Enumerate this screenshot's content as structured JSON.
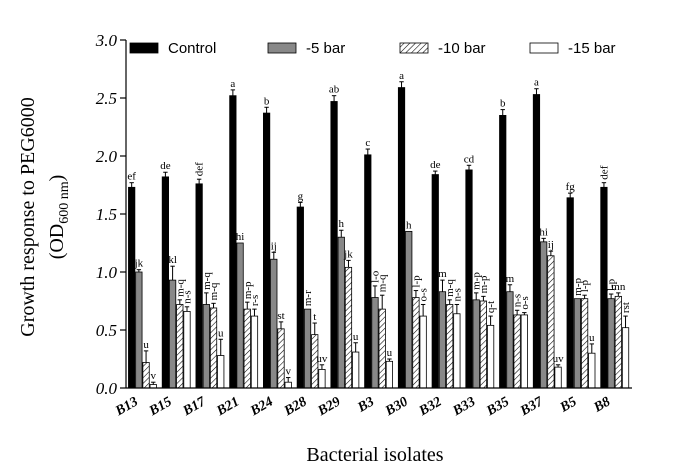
{
  "chart_data": {
    "type": "bar",
    "ylabel_line1": "Growth response to PEG6000",
    "ylabel_line2_prefix": "(OD",
    "ylabel_line2_sub": "600 nm",
    "ylabel_line2_suffix": ")",
    "xlabel": "Bacterial isolates",
    "ylim": [
      0,
      3.0
    ],
    "yticks": [
      "0.0",
      "0.5",
      "1.0",
      "1.5",
      "2.0",
      "2.5",
      "3.0"
    ],
    "legend_position": "top",
    "categories": [
      "B13",
      "B15",
      "B17",
      "B21",
      "B24",
      "B28",
      "B29",
      "B3",
      "B30",
      "B32",
      "B33",
      "B35",
      "B37",
      "B5",
      "B8"
    ],
    "series": [
      {
        "name": "Control",
        "fill": "#000000",
        "values": [
          1.73,
          1.82,
          1.76,
          2.52,
          2.37,
          1.56,
          2.47,
          2.01,
          2.59,
          1.84,
          1.88,
          2.35,
          2.53,
          1.64,
          1.73
        ],
        "errors": [
          0.04,
          0.04,
          0.04,
          0.05,
          0.05,
          0.04,
          0.05,
          0.05,
          0.05,
          0.03,
          0.04,
          0.05,
          0.05,
          0.04,
          0.04
        ],
        "labels": [
          "ef",
          "de",
          "def",
          "a",
          "b",
          "g",
          "ab",
          "c",
          "a",
          "de",
          "cd",
          "b",
          "a",
          "fg",
          "def"
        ]
      },
      {
        "name": "-5 bar",
        "fill": "#888888",
        "values": [
          1.0,
          0.93,
          0.72,
          1.25,
          1.11,
          0.68,
          1.3,
          0.78,
          1.35,
          0.83,
          0.76,
          0.83,
          1.26,
          0.77,
          0.77
        ],
        "errors": [
          0.02,
          0.12,
          0.1,
          0.0,
          0.06,
          0.0,
          0.06,
          0.1,
          0.0,
          0.1,
          0.06,
          0.06,
          0.03,
          0.0,
          0.04
        ],
        "labels": [
          "jk",
          "kl",
          "m-q",
          "hi",
          "ij",
          "m-r",
          "h",
          "l-o",
          "h",
          "m",
          "m-p",
          "m",
          "hi",
          "m-p",
          "l-p"
        ]
      },
      {
        "name": "-10 bar",
        "fill": "hatch",
        "values": [
          0.22,
          0.72,
          0.69,
          0.68,
          0.51,
          0.46,
          1.04,
          0.68,
          0.78,
          0.72,
          0.75,
          0.63,
          1.14,
          0.77,
          0.79
        ],
        "errors": [
          0.1,
          0.04,
          0.04,
          0.06,
          0.06,
          0.1,
          0.06,
          0.12,
          0.06,
          0.04,
          0.04,
          0.04,
          0.04,
          0.03,
          0.03
        ],
        "labels": [
          "u",
          "m-q",
          "m-q",
          "m-p",
          "st",
          "t",
          "jk",
          "m-q",
          "l-p",
          "m-q",
          "m-p",
          "n-s",
          "ij",
          "l-p",
          "mn"
        ]
      },
      {
        "name": "-15 bar",
        "fill": "#ffffff",
        "values": [
          0.03,
          0.66,
          0.28,
          0.62,
          0.05,
          0.16,
          0.31,
          0.23,
          0.62,
          0.64,
          0.54,
          0.63,
          0.18,
          0.3,
          0.52
        ],
        "errors": [
          0.02,
          0.04,
          0.14,
          0.06,
          0.04,
          0.04,
          0.08,
          0.02,
          0.1,
          0.08,
          0.08,
          0.02,
          0.02,
          0.08,
          0.1
        ],
        "labels": [
          "v",
          "n-s",
          "u",
          "r-s",
          "v",
          "uv",
          "u",
          "u",
          "o-s",
          "n-s",
          "q-t",
          "o-s",
          "uv",
          "u",
          "rst"
        ]
      }
    ]
  }
}
